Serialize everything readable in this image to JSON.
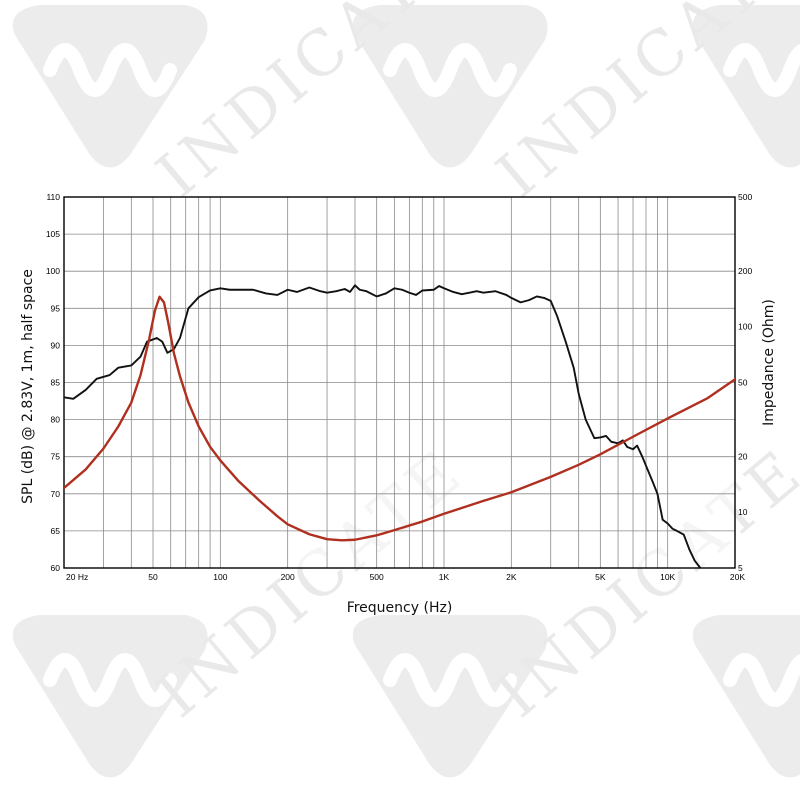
{
  "watermark": {
    "text": "INDICATE",
    "color": "#ececec"
  },
  "chart_data": {
    "type": "line",
    "x_scale": "log",
    "xlabel": "Frequency (Hz)",
    "ylabel_left": "SPL (dB) @ 2.83V, 1m, half space",
    "ylabel_right": "Impedance (Ohm)",
    "xlim": [
      20,
      20000
    ],
    "ylim_left": [
      60,
      110
    ],
    "ylim_right_log": [
      5,
      500
    ],
    "grid": true,
    "x_tick_labels": [
      {
        "value": 20,
        "label": "20  Hz"
      },
      {
        "value": 50,
        "label": "50"
      },
      {
        "value": 100,
        "label": "100"
      },
      {
        "value": 200,
        "label": "200"
      },
      {
        "value": 500,
        "label": "500"
      },
      {
        "value": 1000,
        "label": "1K"
      },
      {
        "value": 2000,
        "label": "2K"
      },
      {
        "value": 5000,
        "label": "5K"
      },
      {
        "value": 10000,
        "label": "10K"
      },
      {
        "value": 20000,
        "label": "20K"
      }
    ],
    "y_left_ticks": [
      60,
      65,
      70,
      75,
      80,
      85,
      90,
      95,
      100,
      105,
      110
    ],
    "y_right_ticks": [
      {
        "value": 5,
        "label": "5"
      },
      {
        "value": 10,
        "label": "10"
      },
      {
        "value": 20,
        "label": "20"
      },
      {
        "value": 50,
        "label": "50"
      },
      {
        "value": 100,
        "label": "100"
      },
      {
        "value": 200,
        "label": "200"
      },
      {
        "value": 500,
        "label": "500"
      }
    ],
    "series": [
      {
        "axis": "left",
        "color": "#111111",
        "points": [
          [
            20,
            83
          ],
          [
            22,
            82.8
          ],
          [
            25,
            84
          ],
          [
            28,
            85.5
          ],
          [
            32,
            86
          ],
          [
            35,
            87
          ],
          [
            40,
            87.3
          ],
          [
            44,
            88.5
          ],
          [
            47,
            90.5
          ],
          [
            52,
            91
          ],
          [
            55,
            90.5
          ],
          [
            58,
            89
          ],
          [
            62,
            89.5
          ],
          [
            66,
            91
          ],
          [
            72,
            95
          ],
          [
            80,
            96.5
          ],
          [
            90,
            97.4
          ],
          [
            100,
            97.7
          ],
          [
            110,
            97.5
          ],
          [
            120,
            97.5
          ],
          [
            140,
            97.5
          ],
          [
            160,
            97
          ],
          [
            180,
            96.8
          ],
          [
            200,
            97.5
          ],
          [
            220,
            97.2
          ],
          [
            250,
            97.8
          ],
          [
            280,
            97.3
          ],
          [
            300,
            97.1
          ],
          [
            330,
            97.3
          ],
          [
            360,
            97.6
          ],
          [
            380,
            97.2
          ],
          [
            400,
            98.1
          ],
          [
            420,
            97.5
          ],
          [
            450,
            97.3
          ],
          [
            500,
            96.6
          ],
          [
            550,
            97.0
          ],
          [
            600,
            97.7
          ],
          [
            650,
            97.5
          ],
          [
            700,
            97.1
          ],
          [
            750,
            96.8
          ],
          [
            800,
            97.4
          ],
          [
            900,
            97.5
          ],
          [
            950,
            98
          ],
          [
            1000,
            97.7
          ],
          [
            1100,
            97.2
          ],
          [
            1200,
            96.9
          ],
          [
            1300,
            97.1
          ],
          [
            1400,
            97.3
          ],
          [
            1500,
            97.1
          ],
          [
            1700,
            97.3
          ],
          [
            1900,
            96.8
          ],
          [
            2000,
            96.4
          ],
          [
            2200,
            95.8
          ],
          [
            2400,
            96.1
          ],
          [
            2600,
            96.6
          ],
          [
            2800,
            96.4
          ],
          [
            3000,
            96
          ],
          [
            3200,
            94
          ],
          [
            3500,
            90.5
          ],
          [
            3800,
            87
          ],
          [
            4000,
            83.5
          ],
          [
            4300,
            80
          ],
          [
            4700,
            77.5
          ],
          [
            5000,
            77.6
          ],
          [
            5300,
            77.8
          ],
          [
            5600,
            77
          ],
          [
            6000,
            76.8
          ],
          [
            6300,
            77.2
          ],
          [
            6600,
            76.3
          ],
          [
            7000,
            76
          ],
          [
            7300,
            76.5
          ],
          [
            7700,
            75
          ],
          [
            8200,
            73
          ],
          [
            8600,
            71.5
          ],
          [
            9000,
            70
          ],
          [
            9500,
            66.5
          ],
          [
            10000,
            66
          ],
          [
            10500,
            65.3
          ],
          [
            11000,
            65
          ],
          [
            11800,
            64.5
          ],
          [
            12500,
            62.5
          ],
          [
            13200,
            61
          ],
          [
            14000,
            60
          ]
        ]
      },
      {
        "axis": "right",
        "color": "#b03020",
        "points": [
          [
            20,
            13.5
          ],
          [
            25,
            17
          ],
          [
            30,
            22
          ],
          [
            35,
            29
          ],
          [
            40,
            39
          ],
          [
            44,
            55
          ],
          [
            48,
            85
          ],
          [
            51,
            122
          ],
          [
            53.5,
            145
          ],
          [
            56,
            135
          ],
          [
            58.5,
            105
          ],
          [
            62,
            72
          ],
          [
            66,
            54
          ],
          [
            72,
            39
          ],
          [
            80,
            29
          ],
          [
            90,
            22.5
          ],
          [
            100,
            19
          ],
          [
            120,
            14.8
          ],
          [
            150,
            11.5
          ],
          [
            180,
            9.5
          ],
          [
            200,
            8.6
          ],
          [
            250,
            7.6
          ],
          [
            300,
            7.15
          ],
          [
            350,
            7.05
          ],
          [
            400,
            7.1
          ],
          [
            500,
            7.5
          ],
          [
            600,
            8.0
          ],
          [
            800,
            8.9
          ],
          [
            1000,
            9.8
          ],
          [
            1500,
            11.5
          ],
          [
            2000,
            12.8
          ],
          [
            3000,
            15.5
          ],
          [
            4000,
            18
          ],
          [
            5000,
            20.5
          ],
          [
            7000,
            25.5
          ],
          [
            10000,
            32
          ],
          [
            15000,
            41
          ],
          [
            20000,
            52
          ]
        ]
      }
    ]
  }
}
